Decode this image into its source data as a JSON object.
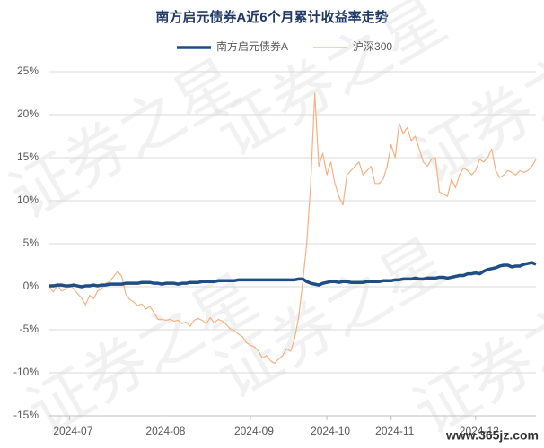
{
  "chart_data": {
    "type": "line",
    "title": "南方启元债券A近6个月累计收益率走势",
    "watermark": "证券之星",
    "site_mark": "www.365jz.com",
    "categories": [
      null,
      null,
      null,
      null,
      null,
      "2024-07",
      null,
      null,
      null,
      null,
      null,
      null,
      null,
      null,
      null,
      null,
      null,
      null,
      null,
      null,
      null,
      null,
      null,
      null,
      null,
      null,
      null,
      null,
      "2024-08",
      null,
      null,
      null,
      null,
      null,
      null,
      null,
      null,
      null,
      null,
      null,
      null,
      null,
      null,
      null,
      null,
      null,
      null,
      null,
      null,
      null,
      "2024-09",
      null,
      null,
      null,
      null,
      null,
      null,
      null,
      null,
      null,
      null,
      null,
      null,
      null,
      null,
      null,
      null,
      null,
      null,
      "2024-10",
      null,
      null,
      null,
      null,
      null,
      null,
      null,
      null,
      null,
      null,
      null,
      null,
      null,
      null,
      null,
      "2024-11",
      null,
      null,
      null,
      null,
      null,
      null,
      null,
      null,
      null,
      null,
      null,
      null,
      null,
      null,
      null,
      null,
      null,
      null,
      null,
      null,
      "2024-12",
      null,
      null,
      null,
      null,
      null,
      null,
      null,
      null,
      null,
      null,
      null,
      null,
      null,
      null,
      null
    ],
    "series": [
      {
        "name": "南方启元债券A",
        "color": "#1f4e85",
        "width": 3.5,
        "values": [
          0.1,
          0.1,
          0.2,
          0.2,
          0.1,
          0.1,
          0.2,
          0.1,
          0.0,
          0.1,
          0.1,
          0.2,
          0.1,
          0.2,
          0.2,
          0.3,
          0.3,
          0.3,
          0.3,
          0.4,
          0.4,
          0.4,
          0.4,
          0.5,
          0.5,
          0.5,
          0.4,
          0.4,
          0.3,
          0.4,
          0.4,
          0.4,
          0.3,
          0.4,
          0.4,
          0.5,
          0.5,
          0.5,
          0.6,
          0.6,
          0.6,
          0.6,
          0.7,
          0.7,
          0.7,
          0.7,
          0.7,
          0.8,
          0.8,
          0.8,
          0.8,
          0.8,
          0.8,
          0.8,
          0.8,
          0.8,
          0.8,
          0.8,
          0.8,
          0.8,
          0.8,
          0.8,
          0.9,
          0.9,
          0.6,
          0.4,
          0.3,
          0.2,
          0.4,
          0.5,
          0.6,
          0.6,
          0.5,
          0.6,
          0.6,
          0.5,
          0.5,
          0.5,
          0.5,
          0.6,
          0.6,
          0.6,
          0.6,
          0.7,
          0.7,
          0.7,
          0.8,
          0.8,
          0.9,
          0.9,
          0.9,
          1.0,
          0.9,
          0.9,
          1.0,
          1.0,
          1.0,
          1.1,
          1.1,
          1.0,
          1.1,
          1.2,
          1.3,
          1.3,
          1.5,
          1.5,
          1.6,
          1.5,
          1.8,
          2.0,
          2.1,
          2.2,
          2.4,
          2.5,
          2.5,
          2.3,
          2.4,
          2.4,
          2.6,
          2.7,
          2.8,
          2.6
        ]
      },
      {
        "name": "沪深300",
        "color": "#f4b183",
        "width": 1.2,
        "values": [
          0,
          -0.6,
          0.2,
          -0.5,
          -0.3,
          0.3,
          -0.2,
          -0.8,
          -1.3,
          -2.1,
          -1.0,
          -1.4,
          -0.5,
          -0.2,
          0.4,
          0.6,
          1.2,
          1.8,
          1.2,
          -0.9,
          -1.5,
          -1.8,
          -2.2,
          -2.0,
          -2.6,
          -2.3,
          -3.0,
          -3.8,
          -3.8,
          -3.9,
          -3.8,
          -4.0,
          -3.9,
          -4.3,
          -4.1,
          -4.6,
          -3.9,
          -3.7,
          -3.9,
          -4.3,
          -3.6,
          -4.2,
          -3.8,
          -4.0,
          -4.4,
          -4.9,
          -5.1,
          -5.5,
          -5.8,
          -6.5,
          -6.8,
          -7.0,
          -7.5,
          -8.3,
          -8.0,
          -8.6,
          -8.9,
          -8.4,
          -8.0,
          -7.2,
          -7.5,
          -6.0,
          -3.5,
          0.5,
          5.0,
          12.0,
          22.5,
          14,
          15.5,
          13,
          14.5,
          12,
          10.5,
          9.5,
          13,
          13.5,
          14,
          14.5,
          13,
          13.5,
          14,
          12,
          12,
          12.5,
          14,
          16.5,
          15,
          19,
          17.8,
          18.5,
          17,
          17.5,
          16,
          14.5,
          14,
          14.8,
          15,
          11,
          10.8,
          10.5,
          12.5,
          11.5,
          13,
          13.8,
          13.5,
          13,
          13.5,
          14.8,
          14.5,
          15,
          16,
          13.5,
          12.7,
          13,
          13.5,
          13.3,
          13,
          13.5,
          13.3,
          13.5,
          14,
          14.8
        ]
      }
    ],
    "ylim": [
      -15,
      25
    ],
    "yticks": [
      {
        "value": -15,
        "label": "-15%"
      },
      {
        "value": -10,
        "label": "-10%"
      },
      {
        "value": -5,
        "label": "-5%"
      },
      {
        "value": 0,
        "label": "0%"
      },
      {
        "value": 5,
        "label": "5%"
      },
      {
        "value": 10,
        "label": "10%"
      },
      {
        "value": 15,
        "label": "15%"
      },
      {
        "value": 20,
        "label": "20%"
      },
      {
        "value": 25,
        "label": "25%"
      }
    ],
    "grid": true
  }
}
